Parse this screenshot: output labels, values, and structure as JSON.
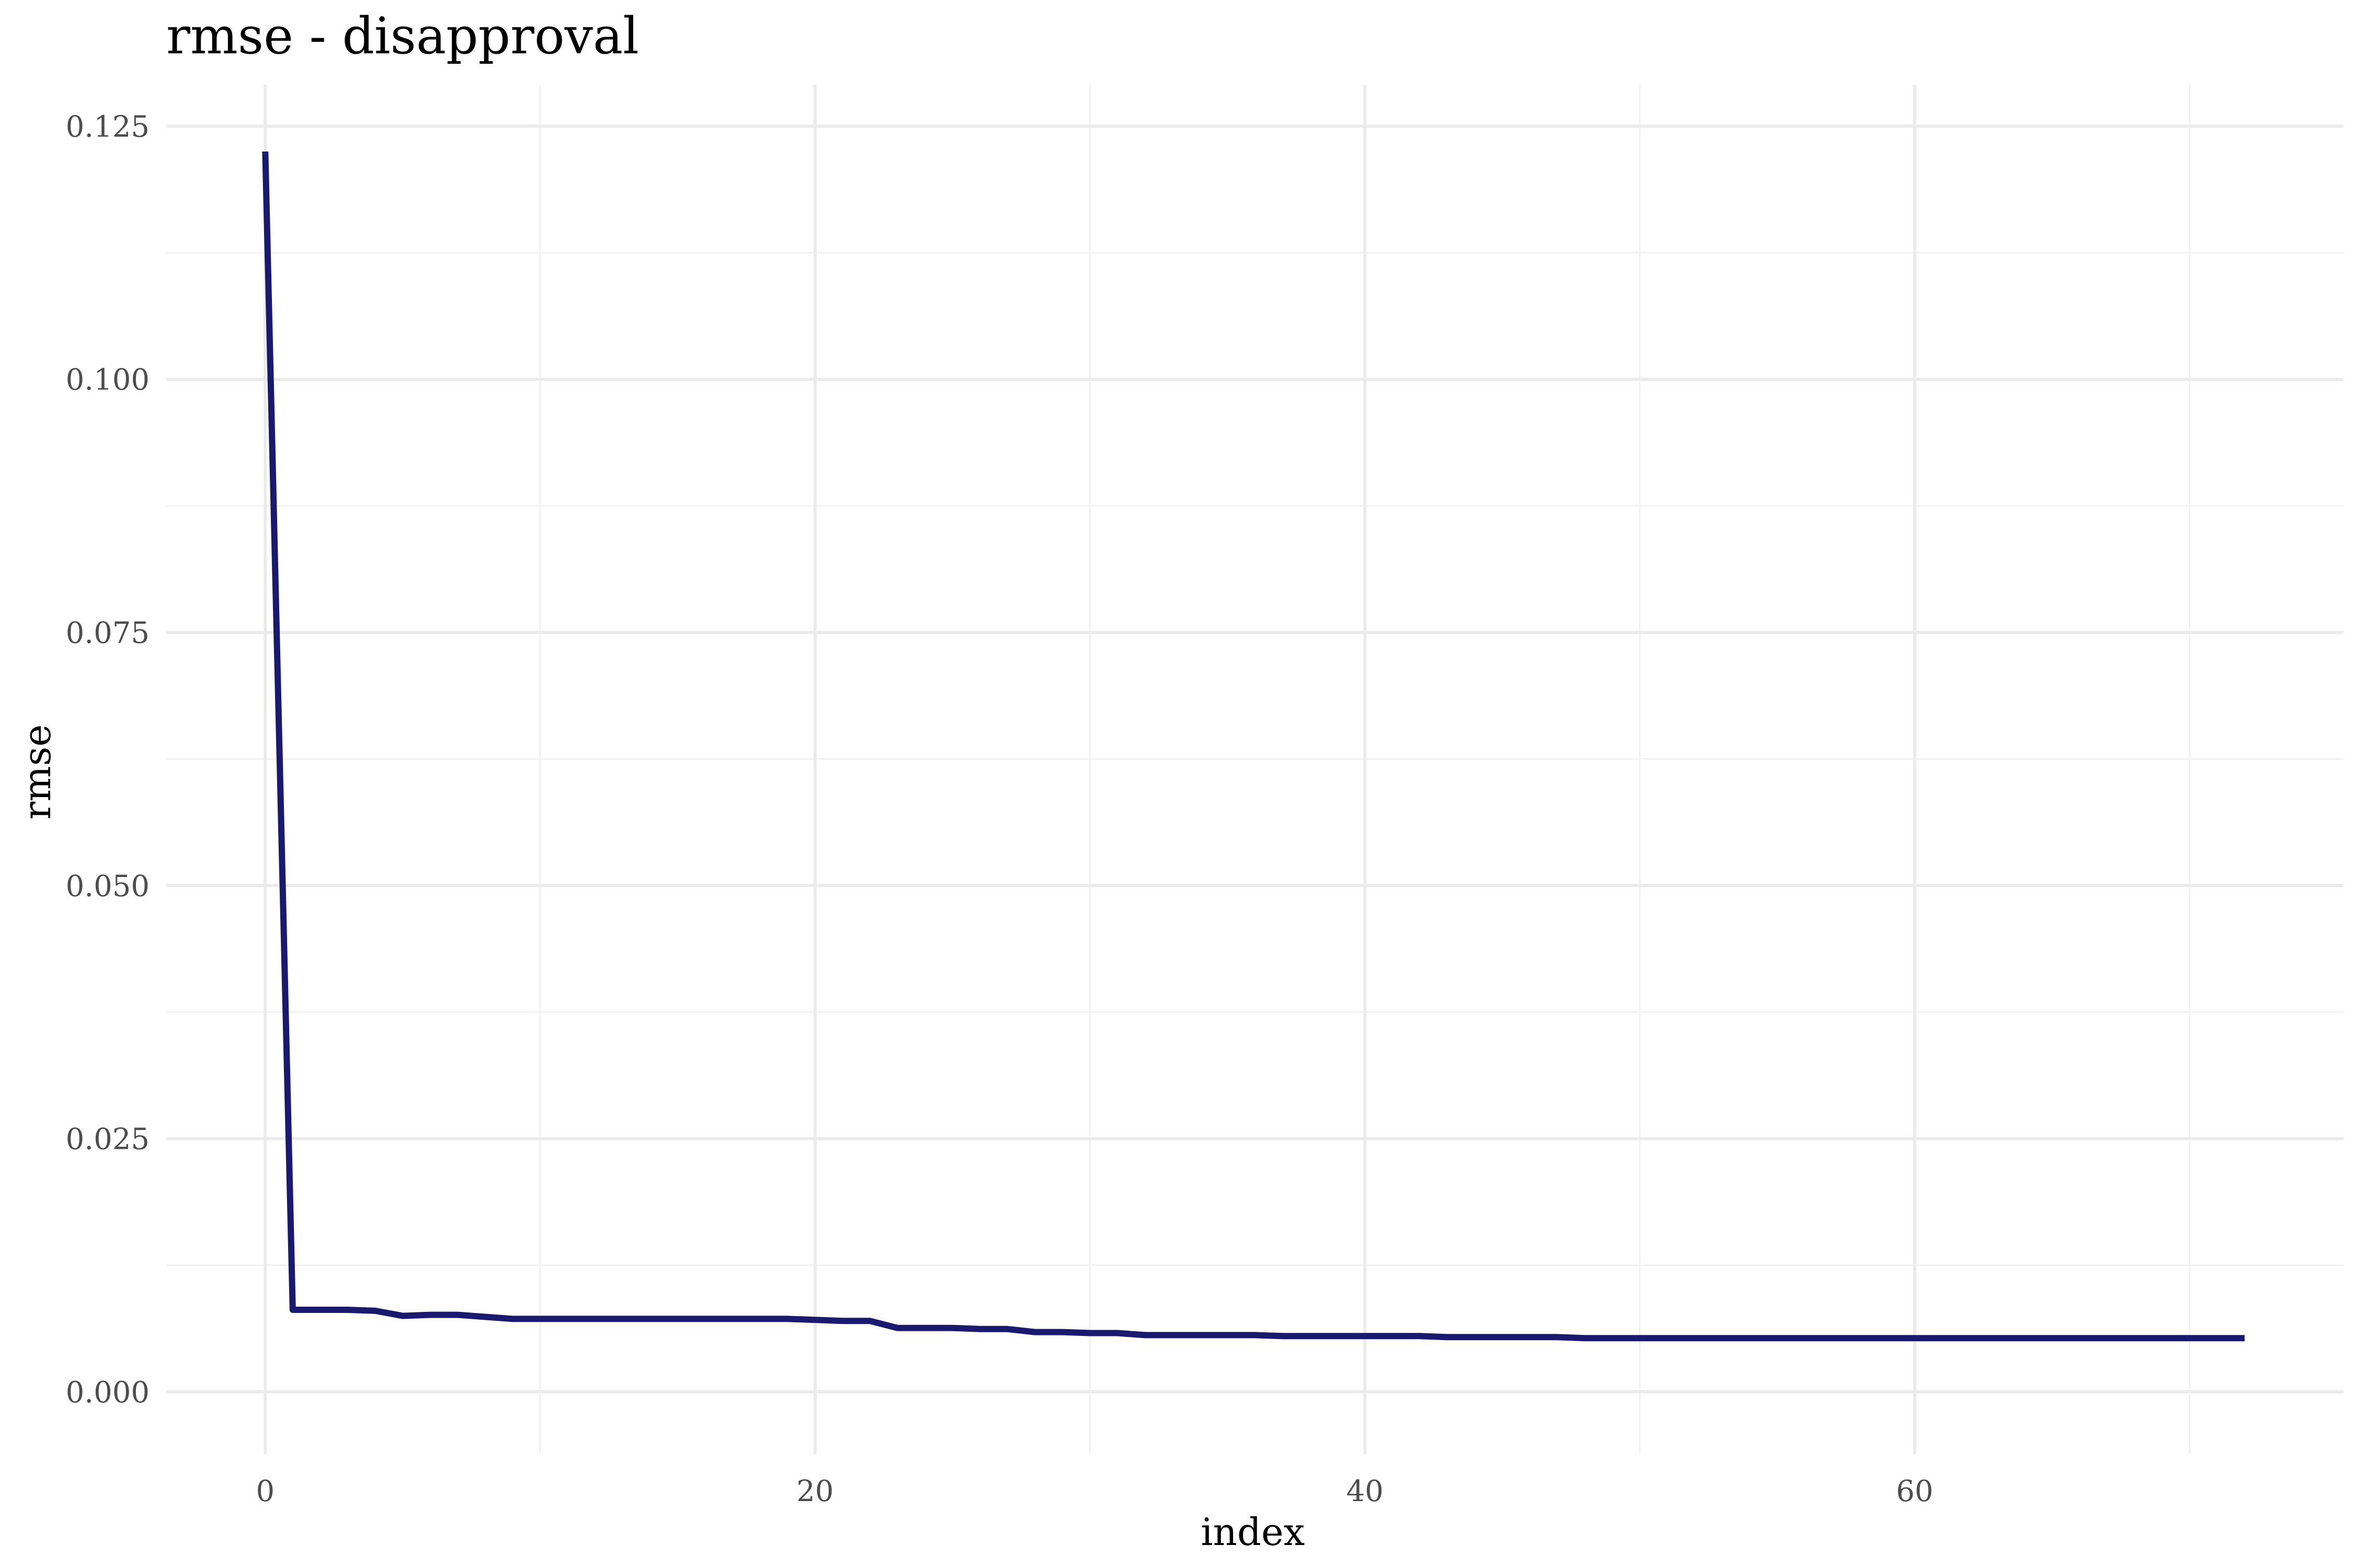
{
  "chart_data": {
    "type": "line",
    "title": "rmse - disapproval",
    "xlabel": "index",
    "ylabel": "rmse",
    "xlim": [
      -3.6,
      75.6
    ],
    "ylim": [
      -0.00615,
      0.1291
    ],
    "x_ticks": [
      0,
      20,
      40,
      60
    ],
    "x_tick_labels": [
      "0",
      "20",
      "40",
      "60"
    ],
    "x_minor_ticks": [
      10,
      30,
      50,
      70
    ],
    "y_ticks": [
      0.0,
      0.025,
      0.05,
      0.075,
      0.1,
      0.125
    ],
    "y_tick_labels": [
      "0.000",
      "0.025",
      "0.050",
      "0.075",
      "0.100",
      "0.125"
    ],
    "y_minor_ticks": [
      0.0125,
      0.0375,
      0.0625,
      0.0875,
      0.1125
    ],
    "grid": true,
    "legend": "none",
    "line_color": "#191970",
    "series": [
      {
        "x": [
          0,
          1,
          2,
          3,
          4,
          5,
          6,
          7,
          8,
          9,
          10,
          11,
          12,
          13,
          14,
          15,
          16,
          17,
          18,
          19,
          20,
          21,
          22,
          23,
          24,
          25,
          26,
          27,
          28,
          29,
          30,
          31,
          32,
          33,
          34,
          35,
          36,
          37,
          38,
          39,
          40,
          41,
          42,
          43,
          44,
          45,
          46,
          47,
          48,
          49,
          50,
          51,
          52,
          53,
          54,
          55,
          56,
          57,
          58,
          59,
          60,
          61,
          62,
          63,
          64,
          65,
          66,
          67,
          68,
          69,
          70,
          71,
          72
        ],
        "values": [
          0.1225,
          0.0081,
          0.0081,
          0.0081,
          0.008,
          0.0075,
          0.0076,
          0.0076,
          0.0074,
          0.0072,
          0.0072,
          0.0072,
          0.0072,
          0.0072,
          0.0072,
          0.0072,
          0.0072,
          0.0072,
          0.0072,
          0.0072,
          0.0071,
          0.007,
          0.007,
          0.0063,
          0.0063,
          0.0063,
          0.0062,
          0.0062,
          0.0059,
          0.0059,
          0.0058,
          0.0058,
          0.0056,
          0.0056,
          0.0056,
          0.0056,
          0.0056,
          0.0055,
          0.0055,
          0.0055,
          0.0055,
          0.0055,
          0.0055,
          0.0054,
          0.0054,
          0.0054,
          0.0054,
          0.0054,
          0.0053,
          0.0053,
          0.0053,
          0.0053,
          0.0053,
          0.0053,
          0.0053,
          0.0053,
          0.0053,
          0.0053,
          0.0053,
          0.0053,
          0.0053,
          0.0053,
          0.0053,
          0.0053,
          0.0053,
          0.0053,
          0.0053,
          0.0053,
          0.0053,
          0.0053,
          0.0053,
          0.0053,
          0.0053
        ]
      }
    ]
  }
}
